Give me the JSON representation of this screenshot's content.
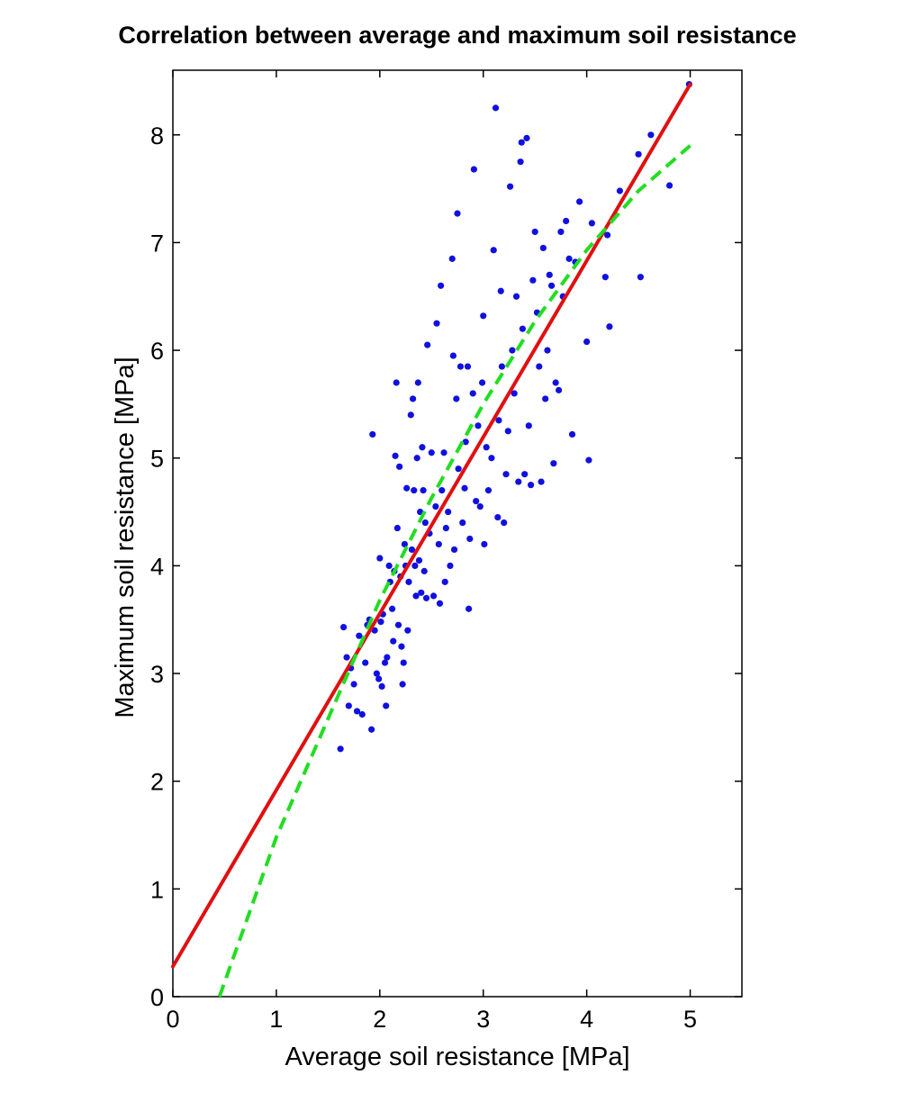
{
  "chart_data": {
    "type": "scatter",
    "title": "Correlation between average and maximum soil resistance",
    "xlabel": "Average soil resistance [MPa]",
    "ylabel": "Maximum soil resistance [MPa]",
    "xlim": [
      0,
      5.5
    ],
    "ylim": [
      0,
      8.6
    ],
    "xticks": [
      0,
      1,
      2,
      3,
      4,
      5
    ],
    "yticks": [
      0,
      1,
      2,
      3,
      4,
      5,
      6,
      7,
      8
    ],
    "grid": false,
    "series": [
      {
        "type": "scatter",
        "color": "#1010e0",
        "points": [
          [
            1.62,
            2.3
          ],
          [
            1.65,
            3.43
          ],
          [
            1.68,
            3.15
          ],
          [
            1.7,
            2.7
          ],
          [
            1.72,
            3.05
          ],
          [
            1.75,
            2.9
          ],
          [
            1.78,
            2.65
          ],
          [
            1.8,
            3.35
          ],
          [
            1.83,
            2.62
          ],
          [
            1.86,
            3.1
          ],
          [
            1.88,
            3.45
          ],
          [
            1.9,
            3.5
          ],
          [
            1.92,
            2.48
          ],
          [
            1.93,
            5.22
          ],
          [
            1.95,
            3.4
          ],
          [
            1.97,
            3.0
          ],
          [
            1.99,
            2.95
          ],
          [
            2.0,
            4.07
          ],
          [
            2.01,
            3.48
          ],
          [
            2.02,
            2.88
          ],
          [
            2.03,
            3.55
          ],
          [
            2.05,
            3.1
          ],
          [
            2.06,
            2.7
          ],
          [
            2.07,
            3.15
          ],
          [
            2.09,
            4.0
          ],
          [
            2.1,
            3.85
          ],
          [
            2.12,
            3.6
          ],
          [
            2.13,
            3.3
          ],
          [
            2.14,
            3.95
          ],
          [
            2.15,
            5.02
          ],
          [
            2.16,
            5.7
          ],
          [
            2.17,
            4.35
          ],
          [
            2.18,
            3.45
          ],
          [
            2.19,
            4.92
          ],
          [
            2.2,
            3.9
          ],
          [
            2.21,
            3.25
          ],
          [
            2.22,
            2.9
          ],
          [
            2.23,
            3.1
          ],
          [
            2.24,
            4.2
          ],
          [
            2.25,
            4.0
          ],
          [
            2.26,
            4.72
          ],
          [
            2.27,
            3.4
          ],
          [
            2.28,
            3.85
          ],
          [
            2.3,
            5.4
          ],
          [
            2.31,
            4.15
          ],
          [
            2.32,
            5.55
          ],
          [
            2.33,
            4.7
          ],
          [
            2.34,
            4.0
          ],
          [
            2.35,
            3.72
          ],
          [
            2.36,
            5.0
          ],
          [
            2.37,
            5.7
          ],
          [
            2.38,
            4.05
          ],
          [
            2.39,
            4.5
          ],
          [
            2.4,
            3.75
          ],
          [
            2.41,
            5.1
          ],
          [
            2.42,
            4.7
          ],
          [
            2.43,
            3.95
          ],
          [
            2.44,
            4.4
          ],
          [
            2.45,
            3.7
          ],
          [
            2.46,
            6.05
          ],
          [
            2.48,
            4.3
          ],
          [
            2.5,
            5.05
          ],
          [
            2.52,
            3.72
          ],
          [
            2.54,
            4.55
          ],
          [
            2.55,
            6.25
          ],
          [
            2.57,
            4.2
          ],
          [
            2.58,
            3.65
          ],
          [
            2.59,
            6.6
          ],
          [
            2.6,
            4.7
          ],
          [
            2.62,
            5.05
          ],
          [
            2.63,
            3.85
          ],
          [
            2.64,
            4.35
          ],
          [
            2.66,
            4.5
          ],
          [
            2.68,
            4.0
          ],
          [
            2.7,
            6.85
          ],
          [
            2.71,
            5.95
          ],
          [
            2.72,
            4.15
          ],
          [
            2.74,
            5.55
          ],
          [
            2.75,
            7.27
          ],
          [
            2.76,
            4.9
          ],
          [
            2.78,
            5.85
          ],
          [
            2.8,
            4.4
          ],
          [
            2.82,
            4.72
          ],
          [
            2.83,
            5.15
          ],
          [
            2.85,
            5.85
          ],
          [
            2.86,
            3.6
          ],
          [
            2.87,
            4.25
          ],
          [
            2.9,
            5.6
          ],
          [
            2.91,
            7.68
          ],
          [
            2.93,
            4.6
          ],
          [
            2.95,
            5.3
          ],
          [
            2.97,
            4.55
          ],
          [
            2.99,
            5.7
          ],
          [
            3.0,
            6.32
          ],
          [
            3.01,
            4.2
          ],
          [
            3.03,
            5.1
          ],
          [
            3.05,
            4.7
          ],
          [
            3.08,
            5.0
          ],
          [
            3.1,
            6.93
          ],
          [
            3.12,
            8.25
          ],
          [
            3.14,
            4.45
          ],
          [
            3.15,
            5.35
          ],
          [
            3.17,
            6.55
          ],
          [
            3.18,
            5.85
          ],
          [
            3.2,
            4.4
          ],
          [
            3.22,
            4.85
          ],
          [
            3.24,
            5.25
          ],
          [
            3.26,
            7.52
          ],
          [
            3.28,
            6.0
          ],
          [
            3.3,
            5.6
          ],
          [
            3.32,
            6.5
          ],
          [
            3.34,
            4.78
          ],
          [
            3.36,
            7.75
          ],
          [
            3.37,
            7.93
          ],
          [
            3.38,
            6.2
          ],
          [
            3.4,
            4.85
          ],
          [
            3.42,
            7.97
          ],
          [
            3.44,
            5.3
          ],
          [
            3.46,
            4.75
          ],
          [
            3.48,
            6.65
          ],
          [
            3.5,
            7.1
          ],
          [
            3.52,
            6.35
          ],
          [
            3.54,
            5.85
          ],
          [
            3.56,
            4.78
          ],
          [
            3.58,
            6.95
          ],
          [
            3.6,
            5.55
          ],
          [
            3.62,
            6.0
          ],
          [
            3.64,
            6.7
          ],
          [
            3.66,
            6.6
          ],
          [
            3.68,
            4.95
          ],
          [
            3.7,
            5.7
          ],
          [
            3.73,
            5.63
          ],
          [
            3.75,
            7.1
          ],
          [
            3.77,
            6.5
          ],
          [
            3.8,
            7.2
          ],
          [
            3.83,
            6.85
          ],
          [
            3.86,
            5.22
          ],
          [
            3.89,
            6.82
          ],
          [
            3.93,
            7.38
          ],
          [
            4.0,
            6.08
          ],
          [
            4.02,
            4.98
          ],
          [
            4.05,
            7.18
          ],
          [
            4.18,
            6.68
          ],
          [
            4.2,
            7.07
          ],
          [
            4.22,
            6.22
          ],
          [
            4.32,
            7.48
          ],
          [
            4.5,
            7.82
          ],
          [
            4.52,
            6.68
          ],
          [
            4.62,
            8.0
          ],
          [
            4.8,
            7.53
          ],
          [
            4.99,
            8.47
          ]
        ]
      },
      {
        "type": "line",
        "style": "solid",
        "color": "#e01010",
        "points": [
          [
            0,
            0.28
          ],
          [
            5,
            8.47
          ]
        ]
      },
      {
        "type": "line",
        "style": "dashed",
        "color": "#22dd22",
        "points": [
          [
            0.45,
            0
          ],
          [
            1,
            1.48
          ],
          [
            2,
            3.68
          ],
          [
            2.5,
            4.63
          ],
          [
            3,
            5.5
          ],
          [
            3.5,
            6.27
          ],
          [
            4,
            6.93
          ],
          [
            4.5,
            7.48
          ],
          [
            5,
            7.9
          ]
        ]
      }
    ]
  }
}
